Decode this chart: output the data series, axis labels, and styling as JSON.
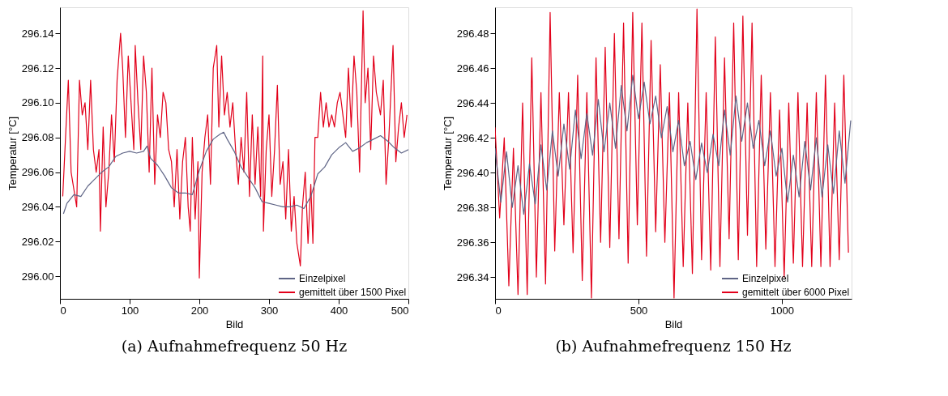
{
  "chart_data": [
    {
      "type": "line",
      "title": "(a) Aufnahmefrequenz 50 Hz",
      "xlabel": "Bild",
      "ylabel": "Temperatur [°C]",
      "xlim": [
        0,
        500
      ],
      "xticks": [
        0,
        100,
        200,
        300,
        400,
        500
      ],
      "ylim": [
        295.987,
        296.155
      ],
      "yticks": [
        {
          "value": 296.0,
          "label": "296.00"
        },
        {
          "value": 296.02,
          "label": "296.02"
        },
        {
          "value": 296.04,
          "label": "296.04"
        },
        {
          "value": 296.06,
          "label": "296.06"
        },
        {
          "value": 296.08,
          "label": "296.08"
        },
        {
          "value": 296.1,
          "label": "296.10"
        },
        {
          "value": 296.12,
          "label": "296.12"
        },
        {
          "value": 296.14,
          "label": "296.14"
        }
      ],
      "grid": false,
      "legend": "bottom right",
      "line_style": "solid",
      "marker": "none",
      "series": [
        {
          "name": "Einzelpixel",
          "color": "#5f6586",
          "x": [
            5,
            10,
            20,
            30,
            40,
            50,
            60,
            70,
            80,
            90,
            100,
            110,
            120,
            125,
            130,
            140,
            150,
            160,
            170,
            180,
            190,
            200,
            210,
            220,
            230,
            235,
            240,
            250,
            260,
            270,
            280,
            290,
            300,
            310,
            320,
            330,
            340,
            350,
            360,
            370,
            380,
            390,
            400,
            410,
            420,
            430,
            440,
            450,
            460,
            470,
            480,
            490,
            500
          ],
          "values": [
            296.036,
            296.042,
            296.047,
            296.046,
            296.052,
            296.056,
            296.06,
            296.063,
            296.069,
            296.071,
            296.072,
            296.071,
            296.072,
            296.075,
            296.068,
            296.064,
            296.058,
            296.051,
            296.048,
            296.048,
            296.047,
            296.061,
            296.072,
            296.079,
            296.082,
            296.083,
            296.079,
            296.072,
            296.063,
            296.057,
            296.051,
            296.043,
            296.042,
            296.041,
            296.04,
            296.04,
            296.041,
            296.039,
            296.046,
            296.059,
            296.063,
            296.07,
            296.074,
            296.077,
            296.072,
            296.074,
            296.077,
            296.079,
            296.081,
            296.078,
            296.074,
            296.071,
            296.073
          ]
        },
        {
          "name": "gemittelt über 1500 Pixel",
          "color": "#e2001a",
          "x": [
            4,
            8,
            12,
            16,
            20,
            24,
            28,
            32,
            36,
            40,
            44,
            48,
            52,
            56,
            58,
            62,
            66,
            70,
            74,
            78,
            82,
            87,
            90,
            94,
            98,
            102,
            106,
            108,
            112,
            116,
            120,
            124,
            128,
            132,
            136,
            140,
            144,
            148,
            152,
            156,
            160,
            164,
            168,
            172,
            176,
            180,
            184,
            187,
            190,
            194,
            198,
            200,
            204,
            208,
            212,
            216,
            220,
            225,
            228,
            232,
            236,
            240,
            244,
            248,
            252,
            256,
            260,
            264,
            268,
            272,
            276,
            280,
            284,
            288,
            291,
            292,
            296,
            300,
            304,
            308,
            312,
            316,
            320,
            324,
            328,
            332,
            336,
            340,
            345,
            348,
            352,
            356,
            360,
            363,
            366,
            370,
            374,
            378,
            382,
            386,
            390,
            394,
            398,
            402,
            406,
            410,
            414,
            418,
            422,
            426,
            430,
            435,
            438,
            442,
            446,
            450,
            454,
            460,
            464,
            468,
            472,
            478,
            482,
            486,
            490,
            494,
            498
          ],
          "values": [
            296.046,
            296.08,
            296.113,
            296.06,
            296.05,
            296.04,
            296.113,
            296.093,
            296.1,
            296.073,
            296.113,
            296.073,
            296.06,
            296.073,
            296.026,
            296.086,
            296.04,
            296.06,
            296.093,
            296.066,
            296.113,
            296.14,
            296.12,
            296.08,
            296.127,
            296.1,
            296.073,
            296.133,
            296.1,
            296.073,
            296.127,
            296.106,
            296.06,
            296.12,
            296.053,
            296.093,
            296.08,
            296.106,
            296.1,
            296.073,
            296.066,
            296.04,
            296.073,
            296.033,
            296.066,
            296.08,
            296.04,
            296.026,
            296.08,
            296.033,
            296.066,
            295.999,
            296.06,
            296.08,
            296.093,
            296.053,
            296.12,
            296.133,
            296.086,
            296.127,
            296.093,
            296.106,
            296.086,
            296.1,
            296.073,
            296.053,
            296.08,
            296.06,
            296.106,
            296.046,
            296.093,
            296.053,
            296.086,
            296.046,
            296.127,
            296.026,
            296.073,
            296.093,
            296.046,
            296.073,
            296.11,
            296.053,
            296.066,
            296.033,
            296.073,
            296.026,
            296.046,
            296.019,
            296.006,
            296.04,
            296.06,
            296.019,
            296.053,
            296.019,
            296.08,
            296.08,
            296.106,
            296.086,
            296.1,
            296.086,
            296.093,
            296.086,
            296.1,
            296.106,
            296.093,
            296.08,
            296.12,
            296.086,
            296.127,
            296.106,
            296.06,
            296.153,
            296.1,
            296.12,
            296.073,
            296.127,
            296.106,
            296.093,
            296.113,
            296.053,
            296.08,
            296.133,
            296.066,
            296.086,
            296.1,
            296.08,
            296.093
          ]
        }
      ]
    },
    {
      "type": "line",
      "title": "(b) Aufnahmefrequenz 150 Hz",
      "xlabel": "Bild",
      "ylabel": "Temperatur [°C]",
      "xlim": [
        0,
        1243
      ],
      "xticks": [
        0,
        500,
        1000
      ],
      "ylim": [
        296.3275,
        296.495
      ],
      "yticks": [
        {
          "value": 296.34,
          "label": "296.34"
        },
        {
          "value": 296.36,
          "label": "296.36"
        },
        {
          "value": 296.38,
          "label": "296.38"
        },
        {
          "value": 296.4,
          "label": "296.40"
        },
        {
          "value": 296.42,
          "label": "296.42"
        },
        {
          "value": 296.44,
          "label": "296.44"
        },
        {
          "value": 296.46,
          "label": "296.46"
        },
        {
          "value": 296.48,
          "label": "296.48"
        }
      ],
      "grid": false,
      "legend": "bottom right",
      "line_style": "solid",
      "marker": "none",
      "series": [
        {
          "name": "Einzelpixel",
          "color": "#5f6586",
          "x": [
            0,
            20,
            40,
            60,
            80,
            100,
            120,
            140,
            160,
            180,
            200,
            220,
            240,
            260,
            280,
            300,
            320,
            340,
            360,
            380,
            400,
            420,
            440,
            460,
            480,
            500,
            520,
            540,
            560,
            580,
            600,
            620,
            640,
            660,
            680,
            700,
            720,
            740,
            760,
            780,
            800,
            820,
            840,
            860,
            880,
            900,
            920,
            940,
            960,
            980,
            1000,
            1020,
            1040,
            1060,
            1080,
            1100,
            1120,
            1140,
            1160,
            1180,
            1200,
            1220,
            1240
          ],
          "values": [
            296.414,
            296.383,
            296.412,
            296.38,
            296.404,
            296.376,
            296.405,
            296.382,
            296.416,
            296.39,
            296.424,
            296.398,
            296.428,
            296.402,
            296.436,
            296.408,
            296.434,
            296.41,
            296.442,
            296.412,
            296.44,
            296.414,
            296.45,
            296.424,
            296.456,
            296.431,
            296.452,
            296.428,
            296.444,
            296.42,
            296.438,
            296.412,
            296.43,
            296.404,
            296.418,
            296.396,
            296.417,
            296.4,
            296.422,
            296.404,
            296.436,
            296.41,
            296.444,
            296.418,
            296.44,
            296.414,
            296.43,
            296.404,
            296.424,
            296.398,
            296.414,
            296.383,
            296.41,
            296.386,
            296.418,
            296.39,
            296.42,
            296.386,
            296.416,
            296.388,
            296.424,
            296.394,
            296.43
          ]
        },
        {
          "name": "gemittelt über 6000 Pixel",
          "color": "#e2001a",
          "x": [
            0,
            16,
            32,
            48,
            64,
            80,
            96,
            112,
            128,
            144,
            160,
            176,
            192,
            208,
            224,
            240,
            256,
            272,
            288,
            304,
            320,
            336,
            352,
            368,
            384,
            400,
            416,
            432,
            448,
            464,
            480,
            496,
            512,
            528,
            544,
            560,
            576,
            592,
            608,
            624,
            640,
            656,
            672,
            688,
            704,
            720,
            736,
            752,
            768,
            784,
            800,
            816,
            832,
            848,
            864,
            880,
            896,
            912,
            928,
            944,
            960,
            976,
            992,
            1008,
            1024,
            1040,
            1056,
            1072,
            1088,
            1104,
            1120,
            1136,
            1152,
            1168,
            1184,
            1200,
            1216,
            1232
          ],
          "values": [
            296.426,
            296.374,
            296.42,
            296.335,
            296.414,
            296.33,
            296.44,
            296.33,
            296.466,
            296.34,
            296.446,
            296.336,
            296.492,
            296.355,
            296.446,
            296.37,
            296.446,
            296.354,
            296.456,
            296.338,
            296.446,
            296.328,
            296.466,
            296.36,
            296.472,
            296.357,
            296.48,
            296.362,
            296.486,
            296.348,
            296.492,
            296.37,
            296.486,
            296.352,
            296.476,
            296.366,
            296.462,
            296.36,
            296.446,
            296.328,
            296.446,
            296.346,
            296.44,
            296.342,
            296.494,
            296.35,
            296.446,
            296.344,
            296.478,
            296.346,
            296.466,
            296.362,
            296.486,
            296.35,
            296.49,
            296.364,
            296.486,
            296.346,
            296.456,
            296.356,
            296.446,
            296.346,
            296.436,
            296.34,
            296.44,
            296.348,
            296.446,
            296.346,
            296.44,
            296.346,
            296.446,
            296.346,
            296.456,
            296.346,
            296.44,
            296.35,
            296.456,
            296.354
          ]
        }
      ]
    }
  ]
}
